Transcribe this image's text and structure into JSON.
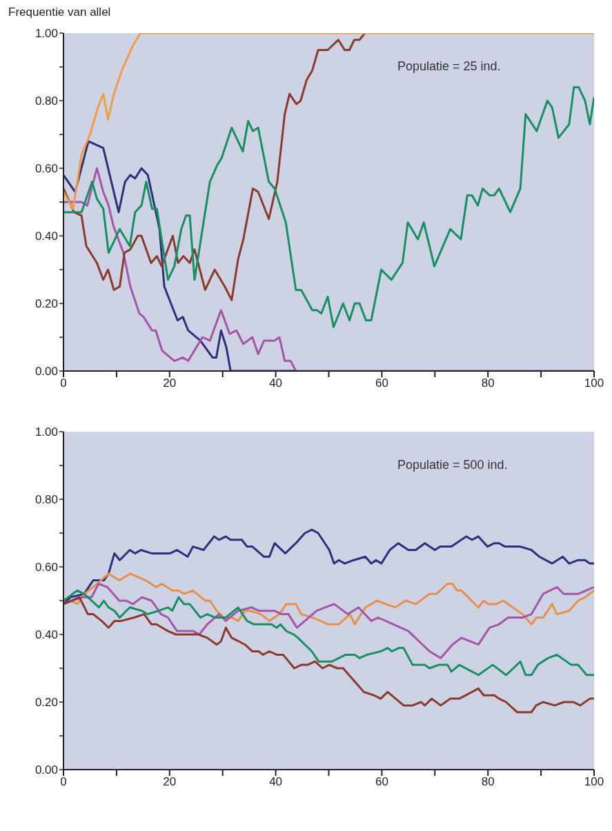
{
  "chart_data": [
    {
      "type": "line",
      "ylabel": "Frequentie van allel",
      "annotations": [
        "Populatie = 25 ind."
      ],
      "xlim": [
        0,
        100
      ],
      "ylim": [
        0,
        1
      ],
      "xticks": [
        0,
        {
          "value": 10,
          "label": null
        },
        20,
        {
          "value": 30,
          "label": null
        },
        40,
        {
          "value": 50,
          "label": null
        },
        60,
        {
          "value": 70,
          "label": null
        },
        80,
        {
          "value": 90,
          "label": null
        },
        100
      ],
      "yticks": [
        {
          "value": 0,
          "label": "0.00"
        },
        {
          "value": 0.1,
          "label": null
        },
        {
          "value": 0.2,
          "label": "0.20"
        },
        {
          "value": 0.3,
          "label": null
        },
        {
          "value": 0.4,
          "label": "0.40"
        },
        {
          "value": 0.5,
          "label": null
        },
        {
          "value": 0.6,
          "label": "0.60"
        },
        {
          "value": 0.7,
          "label": null
        },
        {
          "value": 0.8,
          "label": "0.80"
        },
        {
          "value": 0.9,
          "label": null
        },
        {
          "value": 1,
          "label": "1.00"
        }
      ],
      "series": [
        {
          "color": "#2e2f7a",
          "x": [
            0,
            2.2,
            4.7,
            7.5,
            10.4,
            11.6,
            12.6,
            13.5,
            14.7,
            15.9,
            18.1,
            19,
            21.5,
            22.5,
            23.5,
            25.8,
            28.1,
            28.8,
            29.7,
            30.7,
            31.5,
            44
          ],
          "values": [
            0.58,
            0.53,
            0.68,
            0.66,
            0.47,
            0.56,
            0.58,
            0.57,
            0.6,
            0.58,
            0.42,
            0.25,
            0.15,
            0.16,
            0.12,
            0.09,
            0.04,
            0.04,
            0.12,
            0.07,
            0,
            0
          ]
        },
        {
          "color": "#a455a6",
          "x": [
            0,
            3.4,
            4.5,
            6.3,
            7.5,
            8.5,
            9.4,
            11.3,
            12.6,
            14.3,
            15.1,
            16.7,
            17.4,
            18.6,
            20.9,
            22.5,
            23.5,
            26.2,
            27.6,
            29.7,
            31.3,
            32.6,
            33.9,
            35.6,
            36.7,
            37.8,
            39.8,
            40.7,
            41.7,
            42.8,
            43.8,
            100
          ],
          "values": [
            0.5,
            0.5,
            0.49,
            0.6,
            0.53,
            0.49,
            0.43,
            0.35,
            0.25,
            0.17,
            0.16,
            0.12,
            0.12,
            0.06,
            0.03,
            0.04,
            0.03,
            0.1,
            0.09,
            0.18,
            0.11,
            0.12,
            0.08,
            0.1,
            0.05,
            0.09,
            0.09,
            0.1,
            0.03,
            0.03,
            0,
            0
          ]
        },
        {
          "color": "#8b3a2a",
          "x": [
            0,
            2,
            3.4,
            4.3,
            6.3,
            7.5,
            8.4,
            9.5,
            10.6,
            11.5,
            12.6,
            14,
            14.7,
            16.5,
            17.6,
            18.5,
            20.6,
            21.6,
            22.6,
            23.8,
            24.7,
            26.7,
            28.5,
            30.4,
            31.7,
            32.9,
            33.9,
            35.7,
            36.7,
            38.7,
            40.3,
            41.7,
            42.6,
            43.9,
            44.7,
            45.8,
            46.9,
            48,
            49.8,
            51.8,
            53,
            53.9,
            54.8,
            55.8,
            56.8
          ],
          "values": [
            0.54,
            0.47,
            0.46,
            0.37,
            0.32,
            0.27,
            0.3,
            0.24,
            0.25,
            0.35,
            0.36,
            0.4,
            0.4,
            0.32,
            0.34,
            0.31,
            0.4,
            0.32,
            0.34,
            0.32,
            0.36,
            0.24,
            0.3,
            0.25,
            0.21,
            0.33,
            0.39,
            0.54,
            0.53,
            0.45,
            0.56,
            0.76,
            0.82,
            0.79,
            0.8,
            0.86,
            0.89,
            0.95,
            0.95,
            0.98,
            0.95,
            0.95,
            0.98,
            0.98,
            1
          ]
        },
        {
          "color": "#159060",
          "x": [
            0,
            3.4,
            5.4,
            6.3,
            7.5,
            8.5,
            10.6,
            12.5,
            13.5,
            14.7,
            15.6,
            16.7,
            17.6,
            19.7,
            20.9,
            22.2,
            23.1,
            23.8,
            24.7,
            27.6,
            29,
            29.8,
            31.7,
            33.8,
            34.8,
            35.7,
            36.7,
            38.7,
            39.8,
            41.9,
            43.8,
            44.8,
            46.9,
            47.8,
            48.6,
            49.8,
            50.9,
            52.7,
            53.9,
            54.9,
            55.8,
            57,
            58,
            59.9,
            61.8,
            63.9,
            64.9,
            66.8,
            67.9,
            69.9,
            72.9,
            74.9,
            76.1,
            77,
            78.1,
            79,
            80.3,
            81.2,
            82.1,
            84.2,
            86.1,
            87.1,
            89.2,
            91.2,
            92.1,
            93.3,
            95.3,
            96.2,
            97.1,
            98.3,
            99.2,
            100
          ],
          "values": [
            0.47,
            0.47,
            0.56,
            0.51,
            0.48,
            0.35,
            0.42,
            0.37,
            0.47,
            0.49,
            0.56,
            0.48,
            0.48,
            0.27,
            0.31,
            0.42,
            0.46,
            0.46,
            0.27,
            0.56,
            0.61,
            0.63,
            0.72,
            0.65,
            0.74,
            0.71,
            0.72,
            0.56,
            0.54,
            0.44,
            0.24,
            0.24,
            0.18,
            0.18,
            0.17,
            0.22,
            0.13,
            0.2,
            0.15,
            0.2,
            0.2,
            0.15,
            0.15,
            0.3,
            0.27,
            0.32,
            0.44,
            0.39,
            0.44,
            0.31,
            0.42,
            0.39,
            0.52,
            0.52,
            0.49,
            0.54,
            0.52,
            0.52,
            0.54,
            0.47,
            0.54,
            0.76,
            0.71,
            0.8,
            0.78,
            0.69,
            0.73,
            0.84,
            0.84,
            0.8,
            0.73,
            0.81
          ]
        },
        {
          "color": "#f29d45",
          "x": [
            0,
            1.8,
            3.4,
            5,
            6.5,
            7.5,
            8.4,
            9.5,
            11,
            13,
            14.5,
            100
          ],
          "values": [
            0.53,
            0.48,
            0.64,
            0.7,
            0.78,
            0.82,
            0.745,
            0.82,
            0.89,
            0.96,
            1,
            1
          ]
        }
      ]
    },
    {
      "type": "line",
      "annotations": [
        "Populatie = 500 ind."
      ],
      "xlim": [
        0,
        100
      ],
      "ylim": [
        0,
        1
      ],
      "xticks": [
        0,
        {
          "value": 10,
          "label": null
        },
        20,
        {
          "value": 30,
          "label": null
        },
        40,
        {
          "value": 50,
          "label": null
        },
        60,
        {
          "value": 70,
          "label": null
        },
        80,
        {
          "value": 90,
          "label": null
        },
        100
      ],
      "yticks": [
        {
          "value": 0,
          "label": "0.00"
        },
        {
          "value": 0.1,
          "label": null
        },
        {
          "value": 0.2,
          "label": "0.20"
        },
        {
          "value": 0.3,
          "label": null
        },
        {
          "value": 0.4,
          "label": "0.40"
        },
        {
          "value": 0.5,
          "label": null
        },
        {
          "value": 0.6,
          "label": "0.60"
        },
        {
          "value": 0.7,
          "label": null
        },
        {
          "value": 0.8,
          "label": "0.80"
        },
        {
          "value": 0.9,
          "label": null
        },
        {
          "value": 1,
          "label": "1.00"
        }
      ],
      "series": [
        {
          "color": "#2e2f7a",
          "x": [
            0,
            1.3,
            3.9,
            5.6,
            7.6,
            8.5,
            9.6,
            10.6,
            12.5,
            13.5,
            14.6,
            16.6,
            17.9,
            20.1,
            21.4,
            23.4,
            24.4,
            26.4,
            28.4,
            29.3,
            30.6,
            31.5,
            33.6,
            34.6,
            35.6,
            37.8,
            38.8,
            39.8,
            41.8,
            43.8,
            45.5,
            46.8,
            48,
            50.1,
            51,
            51.9,
            53,
            54.7,
            56.9,
            58,
            58.9,
            59.9,
            61.5,
            63.1,
            65,
            66.4,
            68.1,
            70,
            71,
            73.1,
            75.9,
            77,
            78.2,
            79.9,
            81.2,
            82.1,
            83.2,
            84.8,
            86.1,
            88.2,
            89.7,
            92.1,
            94.1,
            95.3,
            97,
            98.3,
            99.2,
            100
          ],
          "values": [
            0.49,
            0.51,
            0.52,
            0.56,
            0.56,
            0.58,
            0.64,
            0.62,
            0.65,
            0.64,
            0.65,
            0.64,
            0.64,
            0.64,
            0.65,
            0.63,
            0.66,
            0.65,
            0.69,
            0.68,
            0.69,
            0.68,
            0.68,
            0.66,
            0.66,
            0.63,
            0.63,
            0.67,
            0.64,
            0.67,
            0.7,
            0.71,
            0.7,
            0.65,
            0.61,
            0.62,
            0.61,
            0.62,
            0.63,
            0.61,
            0.62,
            0.61,
            0.65,
            0.67,
            0.65,
            0.65,
            0.67,
            0.65,
            0.66,
            0.66,
            0.69,
            0.68,
            0.69,
            0.66,
            0.67,
            0.67,
            0.66,
            0.66,
            0.66,
            0.65,
            0.63,
            0.61,
            0.63,
            0.61,
            0.62,
            0.62,
            0.61,
            0.61
          ]
        },
        {
          "color": "#e8904a",
          "x": [
            0,
            1.3,
            2.6,
            3.9,
            5.6,
            8.5,
            10.5,
            12.6,
            15.5,
            17.5,
            18.5,
            20.5,
            21.7,
            22.7,
            24.4,
            26.7,
            27.6,
            28.9,
            30.2,
            31.7,
            32.9,
            34.2,
            35.2,
            37.2,
            38.8,
            40.7,
            42,
            43.8,
            44.8,
            47,
            49.9,
            51.9,
            54,
            54.9,
            56.9,
            59.1,
            62.5,
            64.5,
            66.4,
            69,
            70.3,
            72.4,
            73.3,
            74.2,
            75,
            78.2,
            79.2,
            80.1,
            81.6,
            82.9,
            86.5,
            88.2,
            89.1,
            90.4,
            92.1,
            93,
            95.3,
            97,
            98.3,
            100
          ],
          "values": [
            0.49,
            0.5,
            0.49,
            0.52,
            0.54,
            0.58,
            0.56,
            0.58,
            0.56,
            0.54,
            0.55,
            0.53,
            0.53,
            0.52,
            0.53,
            0.5,
            0.5,
            0.47,
            0.45,
            0.45,
            0.44,
            0.47,
            0.47,
            0.46,
            0.44,
            0.46,
            0.49,
            0.49,
            0.46,
            0.45,
            0.43,
            0.43,
            0.46,
            0.43,
            0.48,
            0.5,
            0.48,
            0.5,
            0.49,
            0.52,
            0.52,
            0.55,
            0.55,
            0.53,
            0.53,
            0.48,
            0.5,
            0.49,
            0.49,
            0.5,
            0.46,
            0.43,
            0.45,
            0.45,
            0.49,
            0.46,
            0.47,
            0.5,
            0.51,
            0.53
          ]
        },
        {
          "color": "#a455a6",
          "x": [
            0,
            3.4,
            5.3,
            6.6,
            8.3,
            10.5,
            11.8,
            13.1,
            14.8,
            16.6,
            18.4,
            19.7,
            21.4,
            23,
            24.4,
            25.6,
            27.1,
            29.3,
            30.6,
            32.9,
            35.5,
            36.8,
            39.8,
            41.1,
            42.4,
            44,
            45.5,
            47.7,
            51,
            53.6,
            55.6,
            58,
            59.3,
            62.2,
            65,
            69,
            71.1,
            73.3,
            75,
            78.2,
            80.3,
            82.1,
            83.8,
            86.5,
            88.2,
            90.4,
            93,
            94.3,
            97,
            100
          ],
          "values": [
            0.49,
            0.51,
            0.51,
            0.55,
            0.54,
            0.5,
            0.5,
            0.49,
            0.51,
            0.5,
            0.46,
            0.45,
            0.41,
            0.41,
            0.41,
            0.4,
            0.43,
            0.46,
            0.44,
            0.47,
            0.48,
            0.47,
            0.47,
            0.46,
            0.46,
            0.42,
            0.44,
            0.47,
            0.49,
            0.46,
            0.48,
            0.44,
            0.45,
            0.43,
            0.41,
            0.35,
            0.33,
            0.37,
            0.39,
            0.37,
            0.42,
            0.43,
            0.45,
            0.45,
            0.46,
            0.52,
            0.54,
            0.52,
            0.52,
            0.54
          ]
        },
        {
          "color": "#159060",
          "x": [
            0,
            2.6,
            3.9,
            6.7,
            7.6,
            8.5,
            9.6,
            10.6,
            12.5,
            14.8,
            15.8,
            17.9,
            19.7,
            20.5,
            21.7,
            22.7,
            23.8,
            25.8,
            27.1,
            28.6,
            30.6,
            32.9,
            34.6,
            35.9,
            37.2,
            39.2,
            40.2,
            40.9,
            42,
            43.4,
            44.2,
            45.5,
            46.8,
            48.1,
            50.6,
            53.2,
            54.9,
            55.8,
            57.2,
            59.8,
            61.1,
            61.9,
            63.2,
            64.1,
            65.8,
            68.1,
            69,
            70.7,
            72.4,
            73.1,
            74.6,
            78.2,
            80.9,
            83.4,
            84.8,
            86.1,
            87.1,
            88.2,
            89.4,
            91.3,
            93,
            95.7,
            97,
            98.6,
            100
          ],
          "values": [
            0.5,
            0.53,
            0.52,
            0.48,
            0.5,
            0.48,
            0.47,
            0.45,
            0.48,
            0.47,
            0.46,
            0.47,
            0.48,
            0.47,
            0.51,
            0.49,
            0.49,
            0.45,
            0.46,
            0.45,
            0.45,
            0.48,
            0.44,
            0.43,
            0.43,
            0.43,
            0.42,
            0.43,
            0.41,
            0.4,
            0.39,
            0.37,
            0.35,
            0.32,
            0.32,
            0.34,
            0.34,
            0.33,
            0.34,
            0.35,
            0.36,
            0.35,
            0.36,
            0.36,
            0.31,
            0.31,
            0.3,
            0.31,
            0.31,
            0.29,
            0.31,
            0.28,
            0.31,
            0.28,
            0.3,
            0.32,
            0.28,
            0.28,
            0.31,
            0.33,
            0.34,
            0.31,
            0.31,
            0.28,
            0.28
          ]
        },
        {
          "color": "#8b3a2a",
          "x": [
            0,
            3,
            4.6,
            5.6,
            7.2,
            8.5,
            9.6,
            10.9,
            13.3,
            15.2,
            16.6,
            17.5,
            19.7,
            21.2,
            23.7,
            25.4,
            27.1,
            28.9,
            29.7,
            30.6,
            31.7,
            33,
            34.2,
            35.6,
            36.8,
            37.6,
            38.8,
            40.2,
            41.4,
            43.5,
            44.8,
            46,
            47.4,
            48.8,
            50.1,
            51.6,
            52.7,
            56.6,
            58.5,
            59.8,
            61.1,
            64.1,
            65.8,
            67.4,
            68.1,
            69.4,
            71.1,
            72.9,
            74.6,
            78.2,
            79.2,
            81.2,
            82.1,
            83.4,
            85.5,
            88.2,
            89.1,
            90.4,
            92.6,
            94.3,
            96.1,
            97.4,
            99.2,
            100
          ],
          "values": [
            0.49,
            0.51,
            0.46,
            0.46,
            0.44,
            0.42,
            0.44,
            0.44,
            0.45,
            0.46,
            0.43,
            0.43,
            0.41,
            0.4,
            0.4,
            0.4,
            0.39,
            0.37,
            0.38,
            0.42,
            0.39,
            0.38,
            0.37,
            0.35,
            0.35,
            0.34,
            0.35,
            0.34,
            0.34,
            0.3,
            0.31,
            0.31,
            0.32,
            0.3,
            0.31,
            0.3,
            0.3,
            0.23,
            0.22,
            0.21,
            0.23,
            0.19,
            0.19,
            0.2,
            0.19,
            0.21,
            0.19,
            0.21,
            0.21,
            0.24,
            0.22,
            0.22,
            0.21,
            0.2,
            0.17,
            0.17,
            0.19,
            0.2,
            0.19,
            0.2,
            0.2,
            0.19,
            0.21,
            0.21
          ]
        }
      ]
    }
  ]
}
